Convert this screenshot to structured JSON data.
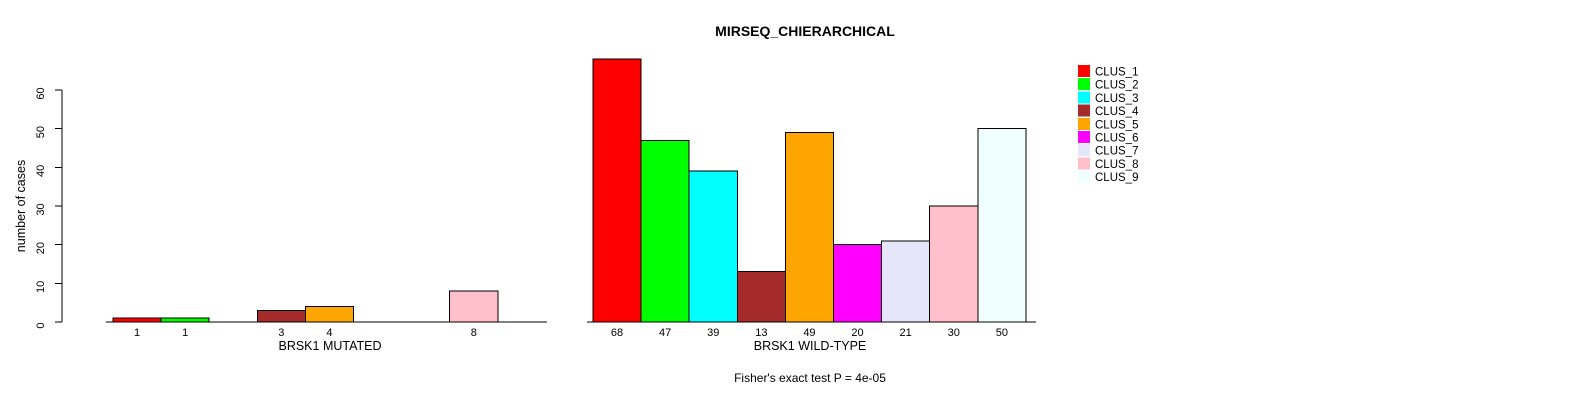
{
  "title": "MIRSEQ_CHIERARCHICAL",
  "footer": "Fisher's exact test P = 4e-05",
  "y_axis": {
    "label": "number of cases",
    "ticks": [
      0,
      10,
      20,
      30,
      40,
      50,
      60
    ]
  },
  "colors": {
    "background": "#FFFFFF",
    "bar_border": "#000000",
    "axis": "#000000",
    "text": "#000000"
  },
  "legend": {
    "position": "right",
    "items": [
      {
        "label": "CLUS_1",
        "color": "#FF0000"
      },
      {
        "label": "CLUS_2",
        "color": "#00FF00"
      },
      {
        "label": "CLUS_3",
        "color": "#00FFFF"
      },
      {
        "label": "CLUS_4",
        "color": "#A52A2A"
      },
      {
        "label": "CLUS_5",
        "color": "#FFA500"
      },
      {
        "label": "CLUS_6",
        "color": "#FF00FF"
      },
      {
        "label": "CLUS_7",
        "color": "#E6E6FA"
      },
      {
        "label": "CLUS_8",
        "color": "#FFC0CB"
      },
      {
        "label": "CLUS_9",
        "color": "#F0FFFF"
      }
    ]
  },
  "chart_data": [
    {
      "type": "bar",
      "title": "MIRSEQ_CHIERARCHICAL",
      "xlabel": "BRSK1 MUTATED",
      "ylabel": "number of cases",
      "categories": [
        "CLUS_1",
        "CLUS_2",
        "CLUS_3",
        "CLUS_4",
        "CLUS_5",
        "CLUS_6",
        "CLUS_7",
        "CLUS_8",
        "CLUS_9"
      ],
      "values": [
        1,
        1,
        0,
        3,
        4,
        0,
        0,
        8,
        0
      ],
      "colors": [
        "#FF0000",
        "#00FF00",
        "#00FFFF",
        "#A52A2A",
        "#FFA500",
        "#FF00FF",
        "#E6E6FA",
        "#FFC0CB",
        "#F0FFFF"
      ],
      "bar_labels": [
        "1",
        "1",
        "",
        "3",
        "4",
        "",
        "",
        "8",
        ""
      ],
      "ylim": [
        0,
        68
      ],
      "grid": false,
      "bar_spacing": 0
    },
    {
      "type": "bar",
      "title": "MIRSEQ_CHIERARCHICAL",
      "xlabel": "BRSK1 WILD-TYPE",
      "ylabel": "number of cases",
      "categories": [
        "CLUS_1",
        "CLUS_2",
        "CLUS_3",
        "CLUS_4",
        "CLUS_5",
        "CLUS_6",
        "CLUS_7",
        "CLUS_8",
        "CLUS_9"
      ],
      "values": [
        68,
        47,
        39,
        13,
        49,
        20,
        21,
        30,
        50
      ],
      "colors": [
        "#FF0000",
        "#00FF00",
        "#00FFFF",
        "#A52A2A",
        "#FFA500",
        "#FF00FF",
        "#E6E6FA",
        "#FFC0CB",
        "#F0FFFF"
      ],
      "bar_labels": [
        "68",
        "47",
        "39",
        "13",
        "49",
        "20",
        "21",
        "30",
        "50"
      ],
      "ylim": [
        0,
        68
      ],
      "grid": false,
      "bar_spacing": 0
    }
  ]
}
